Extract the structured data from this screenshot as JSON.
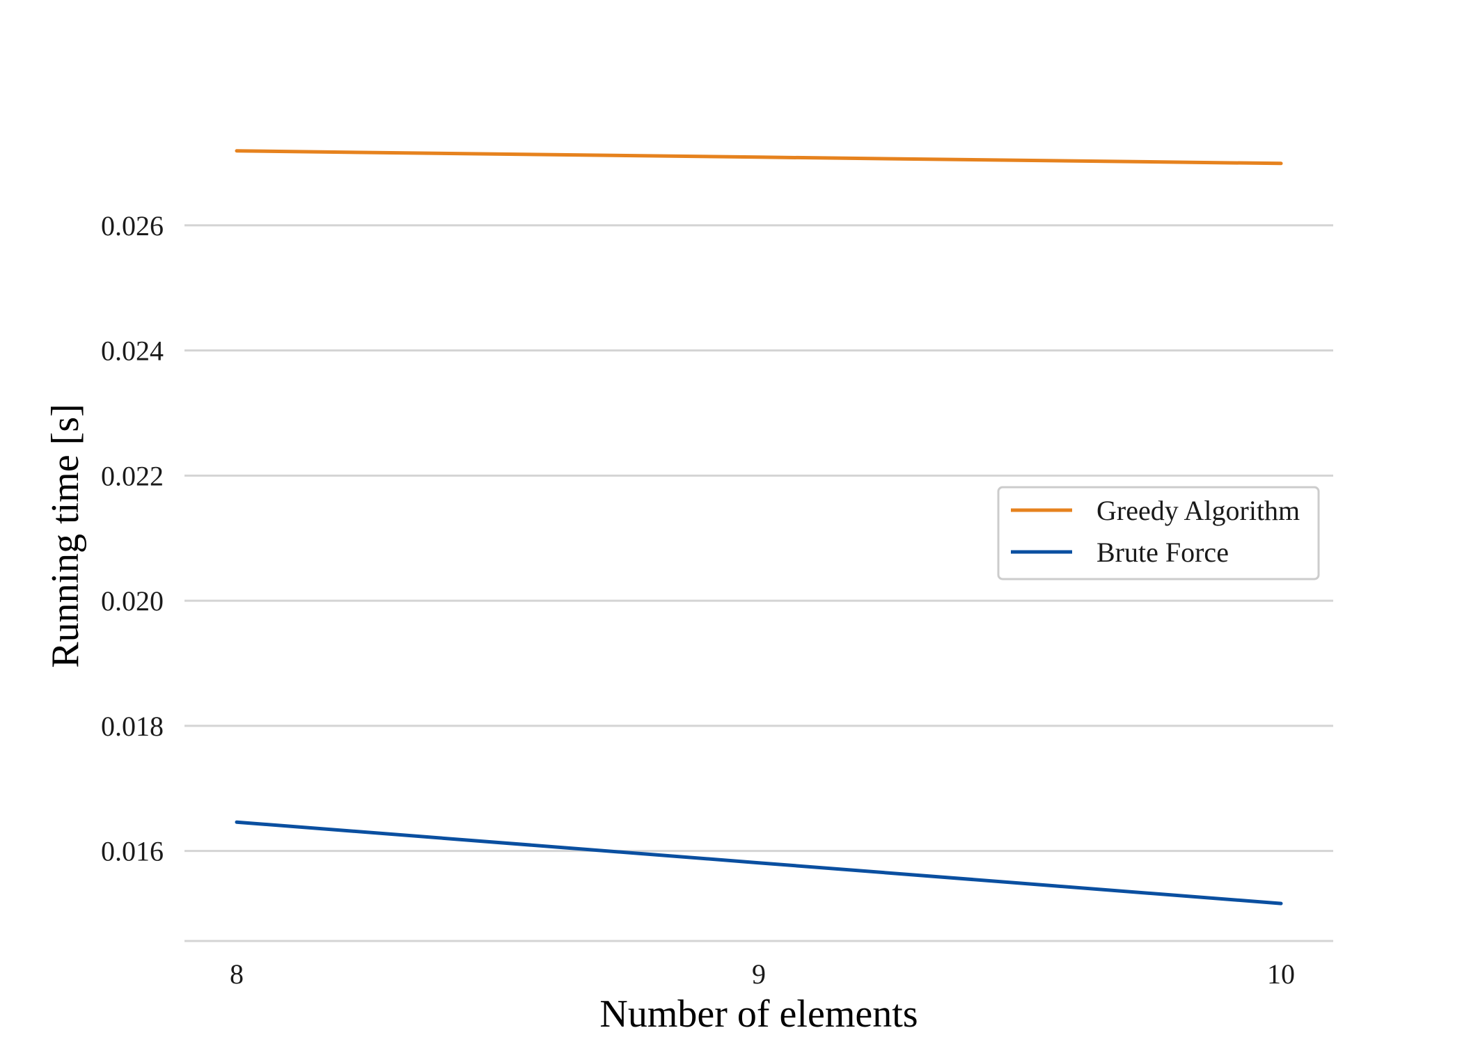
{
  "chart_data": {
    "type": "line",
    "xlabel": "Number of elements",
    "ylabel": "Running time [s]",
    "x": [
      8,
      9,
      10
    ],
    "x_ticks": [
      "8",
      "9",
      "10"
    ],
    "y_ticks": [
      "0.016",
      "0.018",
      "0.020",
      "0.022",
      "0.024",
      "0.026"
    ],
    "xlim": [
      7.9,
      10.1
    ],
    "ylim": [
      0.01456,
      0.0276
    ],
    "grid": "horizontal",
    "legend_position": "center-right",
    "series": [
      {
        "name": "Greedy Algorithm",
        "values": [
          0.02719,
          0.02709,
          0.02699
        ],
        "color": "#e6821e"
      },
      {
        "name": "Brute Force",
        "values": [
          0.01646,
          0.01581,
          0.01516
        ],
        "color": "#0a4fa0"
      }
    ]
  }
}
